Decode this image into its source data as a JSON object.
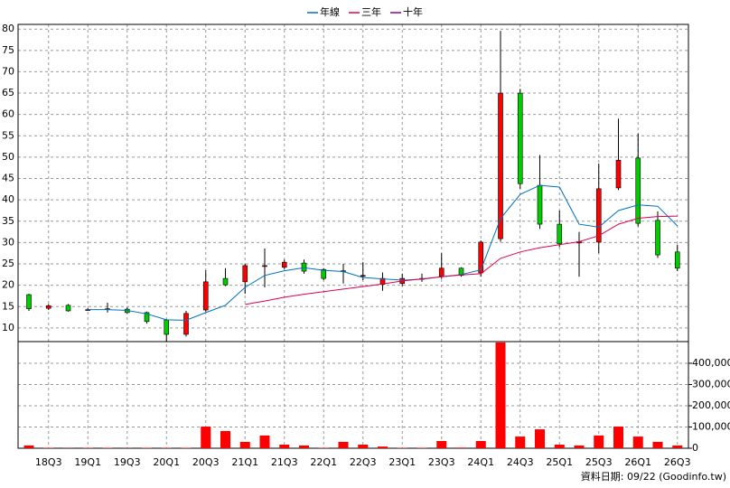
{
  "chart_data": {
    "type": "candlestick",
    "categories": [
      null,
      "18Q3",
      null,
      "19Q1",
      null,
      "19Q3",
      null,
      "20Q1",
      null,
      "20Q3",
      null,
      "21Q1",
      null,
      "21Q3",
      null,
      "22Q1",
      null,
      "22Q3",
      null,
      "23Q1",
      null,
      "23Q3",
      null,
      "24Q1",
      null,
      "24Q3",
      null,
      "25Q1",
      null,
      "25Q3",
      null,
      "26Q1",
      null,
      "26Q3"
    ],
    "open": [
      17.8,
      14.6,
      15.3,
      14.2,
      14.4,
      14.4,
      13.6,
      11.9,
      8.5,
      14.2,
      21.6,
      20.8,
      24.4,
      24.2,
      25.2,
      23.7,
      23.4,
      22.2,
      20.2,
      20.4,
      21.5,
      22.1,
      24,
      22.9,
      30.9,
      65,
      43.4,
      34.3,
      29.9,
      30.1,
      42.8,
      49.8,
      35.2,
      27.8
    ],
    "high": [
      18,
      15.6,
      15.6,
      14.6,
      15.9,
      14.8,
      13.8,
      12.1,
      14,
      23.5,
      24,
      25,
      28.6,
      26,
      26,
      24,
      25,
      25.4,
      23,
      22.7,
      22.7,
      27.5,
      24.2,
      30.5,
      79.6,
      66,
      50.5,
      37.5,
      32.5,
      48.5,
      59,
      55.5,
      37.3,
      29.5
    ],
    "low": [
      14,
      14.2,
      13.8,
      14,
      13.6,
      13.4,
      11,
      6.9,
      8,
      13.8,
      19.8,
      18,
      19.5,
      23.8,
      22.7,
      21.2,
      20.4,
      21.2,
      18.7,
      19.8,
      20.8,
      21.5,
      22,
      22,
      30.2,
      42.6,
      33.2,
      29,
      22,
      27.5,
      42.3,
      33.8,
      26.4,
      23.3
    ],
    "close": [
      14.5,
      15.2,
      14,
      14.3,
      14.5,
      13.6,
      11.5,
      8.5,
      13.4,
      20.8,
      20.1,
      24.6,
      24.6,
      25.4,
      23.3,
      21.6,
      23.2,
      22.3,
      21.6,
      21.6,
      21.6,
      24,
      22.3,
      30.1,
      65,
      43.8,
      34.3,
      29.7,
      30.2,
      42.6,
      49.3,
      34.5,
      27.1,
      24
    ],
    "up_color": "#ff0000",
    "down_color": "#00cc00",
    "series": [
      {
        "name": "年線",
        "color": "#0070c0",
        "values": [
          null,
          null,
          null,
          14.3,
          14.3,
          14.1,
          13.3,
          11.9,
          11.8,
          13.6,
          15.3,
          19.5,
          22.3,
          23.4,
          24.1,
          23.5,
          23.2,
          21.8,
          21.5,
          21.2,
          21.4,
          22,
          22.5,
          23.6,
          35.6,
          41.3,
          43.4,
          43,
          34.3,
          33.6,
          37.5,
          38.8,
          38.5,
          33.9
        ]
      },
      {
        "name": "三年",
        "color": "#e0004c",
        "values": [
          null,
          null,
          null,
          null,
          null,
          null,
          null,
          null,
          null,
          null,
          null,
          15.5,
          16.3,
          17.2,
          17.9,
          18.5,
          19.1,
          19.7,
          20.3,
          21,
          21.5,
          22,
          22.4,
          22.7,
          26.3,
          27.8,
          28.8,
          29.5,
          30.2,
          31.6,
          34.3,
          35.7,
          36.1,
          36.2
        ]
      },
      {
        "name": "十年",
        "color": "#900090",
        "values": [
          null,
          null,
          null,
          null,
          null,
          null,
          null,
          null,
          null,
          null,
          null,
          null,
          null,
          null,
          null,
          null,
          null,
          null,
          null,
          null,
          null,
          null,
          null,
          null,
          null,
          null,
          null,
          null,
          null,
          null,
          null,
          null,
          null,
          null
        ]
      }
    ],
    "volume": {
      "axis": "y2",
      "color": "#ff0000",
      "values": [
        13000,
        2000,
        1000,
        2000,
        2000,
        1000,
        2000,
        2000,
        2000,
        102000,
        81000,
        30000,
        60000,
        17000,
        13000,
        2000,
        30000,
        17000,
        8000,
        2000,
        2000,
        34000,
        3000,
        34000,
        498000,
        55000,
        89000,
        17000,
        13000,
        60000,
        102000,
        55000,
        30000,
        13000
      ]
    },
    "ylim": [
      6.8,
      81.1
    ],
    "yticks": [
      10,
      15,
      20,
      25,
      30,
      35,
      40,
      45,
      50,
      55,
      60,
      65,
      70,
      75,
      80
    ],
    "y2lim": [
      0,
      502000
    ],
    "y2ticks": [
      0,
      {
        "value": 100000,
        "label": "100,000"
      },
      {
        "value": 200000,
        "label": "200,000"
      },
      {
        "value": 300000,
        "label": "300,000"
      },
      {
        "value": 400000,
        "label": "400,000"
      }
    ],
    "grid": true,
    "footer": "資料日期: 09/22 (Goodinfo.tw)"
  }
}
